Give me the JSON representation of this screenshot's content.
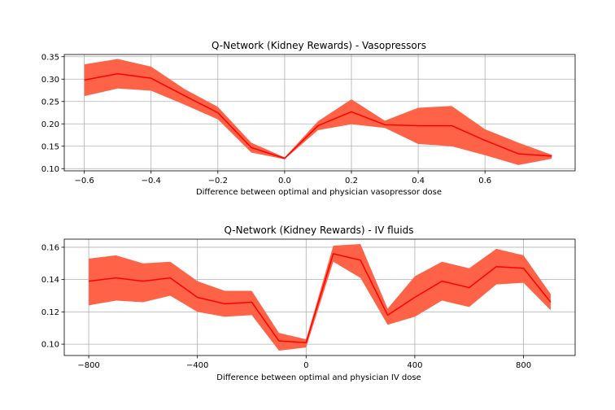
{
  "chart_data": [
    {
      "type": "line",
      "title": "Q-Network (Kidney Rewards) - Vasopressors",
      "xlabel": "Difference between optimal and physician vasopressor dose",
      "ylabel": "",
      "xlim": [
        -0.66,
        0.87
      ],
      "ylim": [
        0.095,
        0.355
      ],
      "xticks": [
        -0.6,
        -0.4,
        -0.2,
        0.0,
        0.2,
        0.4,
        0.6
      ],
      "xtick_labels": [
        "−0.6",
        "−0.4",
        "−0.2",
        "0.0",
        "0.2",
        "0.4",
        "0.6"
      ],
      "yticks": [
        0.1,
        0.15,
        0.2,
        0.25,
        0.3,
        0.35
      ],
      "ytick_labels": [
        "0.10",
        "0.15",
        "0.20",
        "0.25",
        "0.30",
        "0.35"
      ],
      "grid": true,
      "line_color": "#ff0000",
      "band_color": "#ff6347",
      "x": [
        -0.6,
        -0.5,
        -0.4,
        -0.3,
        -0.2,
        -0.1,
        0.0,
        0.1,
        0.2,
        0.3,
        0.4,
        0.5,
        0.6,
        0.7,
        0.8
      ],
      "series": [
        {
          "values": [
            0.298,
            0.312,
            0.302,
            0.263,
            0.225,
            0.147,
            0.123,
            0.196,
            0.227,
            0.198,
            0.196,
            0.196,
            0.163,
            0.133,
            0.128
          ],
          "upper": [
            0.333,
            0.345,
            0.328,
            0.278,
            0.238,
            0.158,
            0.125,
            0.206,
            0.255,
            0.207,
            0.236,
            0.24,
            0.188,
            0.158,
            0.131
          ],
          "lower": [
            0.262,
            0.279,
            0.274,
            0.243,
            0.21,
            0.136,
            0.121,
            0.186,
            0.199,
            0.191,
            0.155,
            0.15,
            0.13,
            0.108,
            0.122
          ]
        }
      ]
    },
    {
      "type": "line",
      "title": "Q-Network (Kidney Rewards) - IV fluids",
      "xlabel": "Difference between optimal and physician IV dose",
      "ylabel": "",
      "xlim": [
        -890,
        990
      ],
      "ylim": [
        0.093,
        0.165
      ],
      "xticks": [
        -800,
        -400,
        0,
        400,
        800
      ],
      "xtick_labels": [
        "−800",
        "−400",
        "0",
        "400",
        "800"
      ],
      "yticks": [
        0.1,
        0.12,
        0.14,
        0.16
      ],
      "ytick_labels": [
        "0.10",
        "0.12",
        "0.14",
        "0.16"
      ],
      "grid": true,
      "line_color": "#ff0000",
      "band_color": "#ff6347",
      "x": [
        -800,
        -700,
        -600,
        -500,
        -400,
        -300,
        -200,
        -100,
        0,
        100,
        200,
        300,
        400,
        500,
        600,
        700,
        800,
        900
      ],
      "series": [
        {
          "values": [
            0.139,
            0.141,
            0.139,
            0.141,
            0.129,
            0.125,
            0.126,
            0.102,
            0.101,
            0.156,
            0.152,
            0.118,
            0.129,
            0.139,
            0.135,
            0.148,
            0.147,
            0.126
          ],
          "upper": [
            0.153,
            0.155,
            0.15,
            0.151,
            0.139,
            0.133,
            0.133,
            0.107,
            0.103,
            0.161,
            0.162,
            0.122,
            0.142,
            0.151,
            0.147,
            0.159,
            0.155,
            0.131
          ],
          "lower": [
            0.124,
            0.127,
            0.126,
            0.13,
            0.12,
            0.117,
            0.118,
            0.096,
            0.098,
            0.151,
            0.141,
            0.112,
            0.117,
            0.127,
            0.123,
            0.137,
            0.138,
            0.121
          ]
        }
      ]
    }
  ]
}
